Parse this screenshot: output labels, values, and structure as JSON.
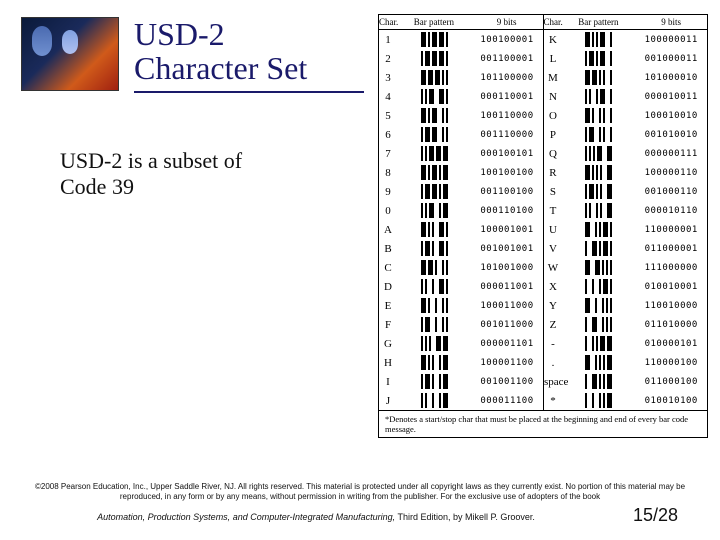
{
  "title": "USD-2\nCharacter Set",
  "subtitle": "USD-2 is a subset of Code 39",
  "chart_headers": {
    "char": "Char.",
    "bar": "Bar pattern",
    "nine": "9 bits"
  },
  "rows_left": [
    {
      "c": "1",
      "p": "211121211",
      "n": "100100001"
    },
    {
      "c": "2",
      "p": "112121211",
      "n": "001100001"
    },
    {
      "c": "3",
      "p": "212121111",
      "n": "101100000"
    },
    {
      "c": "4",
      "p": "111122211",
      "n": "000110001"
    },
    {
      "c": "5",
      "p": "211122111",
      "n": "100110000"
    },
    {
      "c": "6",
      "p": "112122111",
      "n": "001110000"
    },
    {
      "c": "7",
      "p": "111121212",
      "n": "000100101"
    },
    {
      "c": "8",
      "p": "211121112",
      "n": "100100100"
    },
    {
      "c": "9",
      "p": "112121112",
      "n": "001100100"
    },
    {
      "c": "0",
      "p": "111122112",
      "n": "000110100"
    },
    {
      "c": "A",
      "p": "211112211",
      "n": "100001001"
    },
    {
      "c": "B",
      "p": "112112211",
      "n": "001001001"
    },
    {
      "c": "C",
      "p": "212112111",
      "n": "101001000"
    },
    {
      "c": "D",
      "p": "111212211",
      "n": "000011001"
    },
    {
      "c": "E",
      "p": "211212111",
      "n": "100011000"
    },
    {
      "c": "F",
      "p": "112212111",
      "n": "001011000"
    },
    {
      "c": "G",
      "p": "111112212",
      "n": "000001101"
    },
    {
      "c": "H",
      "p": "211112112",
      "n": "100001100"
    },
    {
      "c": "I",
      "p": "112112112",
      "n": "001001100"
    },
    {
      "c": "J",
      "p": "111212112",
      "n": "000011100"
    }
  ],
  "rows_right": [
    {
      "c": "K",
      "p": "211111221",
      "n": "100000011"
    },
    {
      "c": "L",
      "p": "112111221",
      "n": "001000011"
    },
    {
      "c": "M",
      "p": "212111121",
      "n": "101000010"
    },
    {
      "c": "N",
      "p": "111211221",
      "n": "000010011"
    },
    {
      "c": "O",
      "p": "211211121",
      "n": "100010010"
    },
    {
      "c": "P",
      "p": "112211121",
      "n": "001010010"
    },
    {
      "c": "Q",
      "p": "111111222",
      "n": "000000111"
    },
    {
      "c": "R",
      "p": "211111122",
      "n": "100000110"
    },
    {
      "c": "S",
      "p": "112111122",
      "n": "001000110"
    },
    {
      "c": "T",
      "p": "111211122",
      "n": "000010110"
    },
    {
      "c": "U",
      "p": "221111211",
      "n": "110000001"
    },
    {
      "c": "V",
      "p": "122111211",
      "n": "011000001"
    },
    {
      "c": "W",
      "p": "222111111",
      "n": "111000000"
    },
    {
      "c": "X",
      "p": "121211211",
      "n": "010010001"
    },
    {
      "c": "Y",
      "p": "221211111",
      "n": "110010000"
    },
    {
      "c": "Z",
      "p": "122211111",
      "n": "011010000"
    },
    {
      "c": "-",
      "p": "121111212",
      "n": "010000101"
    },
    {
      "c": ".",
      "p": "221111112",
      "n": "110000100"
    },
    {
      "c": "space",
      "p": "122111112",
      "n": "011000100"
    },
    {
      "c": "*",
      "p": "121211112",
      "n": "010010100"
    }
  ],
  "footnote": "*Denotes a start/stop char that must be placed at the beginning and end of every bar code message.",
  "copyright": "©2008 Pearson Education, Inc., Upper Saddle River, NJ. All rights reserved. This material is protected under all copyright laws as they currently exist. No portion of this material may be reproduced, in any form or by any means, without permission in writing from the publisher. For the exclusive use of adopters of the book",
  "book_italic": "Automation, Production Systems, and Computer-Integrated Manufacturing,",
  "book_rest": " Third Edition, by Mikell P. Groover.",
  "page": "15/28",
  "colors": {
    "title": "#1a1a6a",
    "text": "#111111",
    "bg": "#ffffff"
  }
}
